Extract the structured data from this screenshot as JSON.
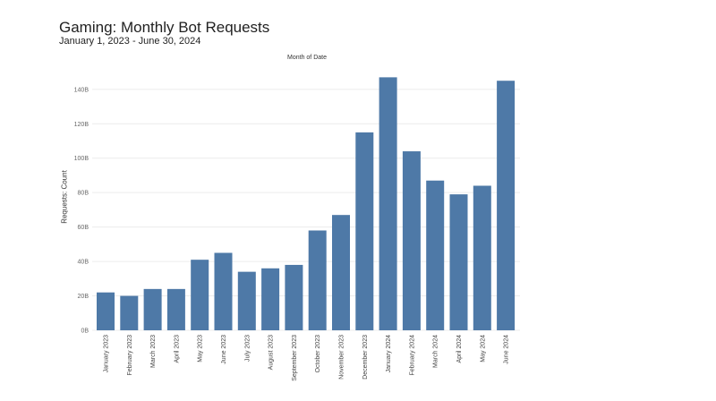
{
  "header": {
    "title": "Gaming: Monthly Bot Requests",
    "subtitle": "January 1, 2023 - June 30, 2024"
  },
  "chart_data": {
    "type": "bar",
    "title": "Gaming: Monthly Bot Requests",
    "subtitle": "January 1, 2023 - June 30, 2024",
    "xlabel": "Month of Date",
    "ylabel": "Requests: Count",
    "categories": [
      "January 2023",
      "February 2023",
      "March 2023",
      "April 2023",
      "May 2023",
      "June 2023",
      "July 2023",
      "August 2023",
      "September 2023",
      "October 2023",
      "November 2023",
      "December 2023",
      "January 2024",
      "February 2024",
      "March 2024",
      "April 2024",
      "May 2024",
      "June 2024"
    ],
    "values": [
      22,
      20,
      24,
      24,
      41,
      45,
      34,
      36,
      38,
      58,
      67,
      115,
      147,
      104,
      87,
      79,
      84,
      145
    ],
    "value_unit": "B",
    "ylim": [
      0,
      150
    ],
    "yticks": [
      0,
      20,
      40,
      60,
      80,
      100,
      120,
      140
    ],
    "ytick_labels": [
      "0B",
      "20B",
      "40B",
      "60B",
      "80B",
      "100B",
      "120B",
      "140B"
    ],
    "grid": true,
    "bar_color": "#4e79a7",
    "grid_color": "#ececec"
  }
}
